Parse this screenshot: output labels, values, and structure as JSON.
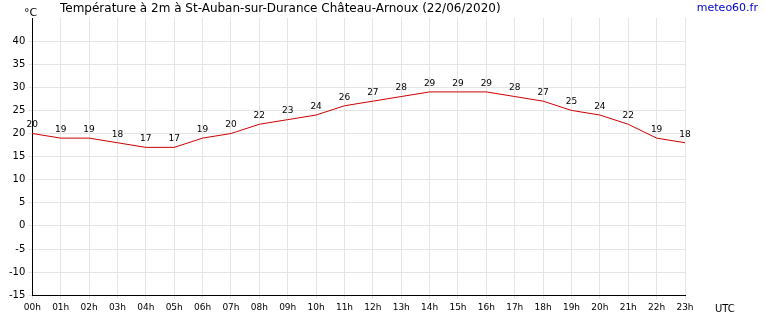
{
  "chart_data": {
    "type": "line",
    "title": "Température à 2m à St-Auban-sur-Durance Château-Arnoux (22/06/2020)",
    "source": "meteo60.fr",
    "y_label": "°C",
    "x_label": "UTC",
    "categories": [
      "00h",
      "01h",
      "02h",
      "03h",
      "04h",
      "05h",
      "06h",
      "07h",
      "08h",
      "09h",
      "10h",
      "11h",
      "12h",
      "13h",
      "14h",
      "15h",
      "16h",
      "17h",
      "18h",
      "19h",
      "20h",
      "21h",
      "22h",
      "23h"
    ],
    "values": [
      20,
      19,
      19,
      18,
      17,
      17,
      19,
      20,
      22,
      23,
      24,
      26,
      27,
      28,
      29,
      29,
      29,
      28,
      27,
      25,
      24,
      22,
      19,
      18
    ],
    "color": "#cc0000",
    "ylim": [
      -15,
      45
    ],
    "yticks": [
      -15,
      -10,
      -5,
      0,
      5,
      10,
      15,
      20,
      25,
      30,
      35,
      40
    ],
    "grid": true,
    "data_labels": true
  }
}
